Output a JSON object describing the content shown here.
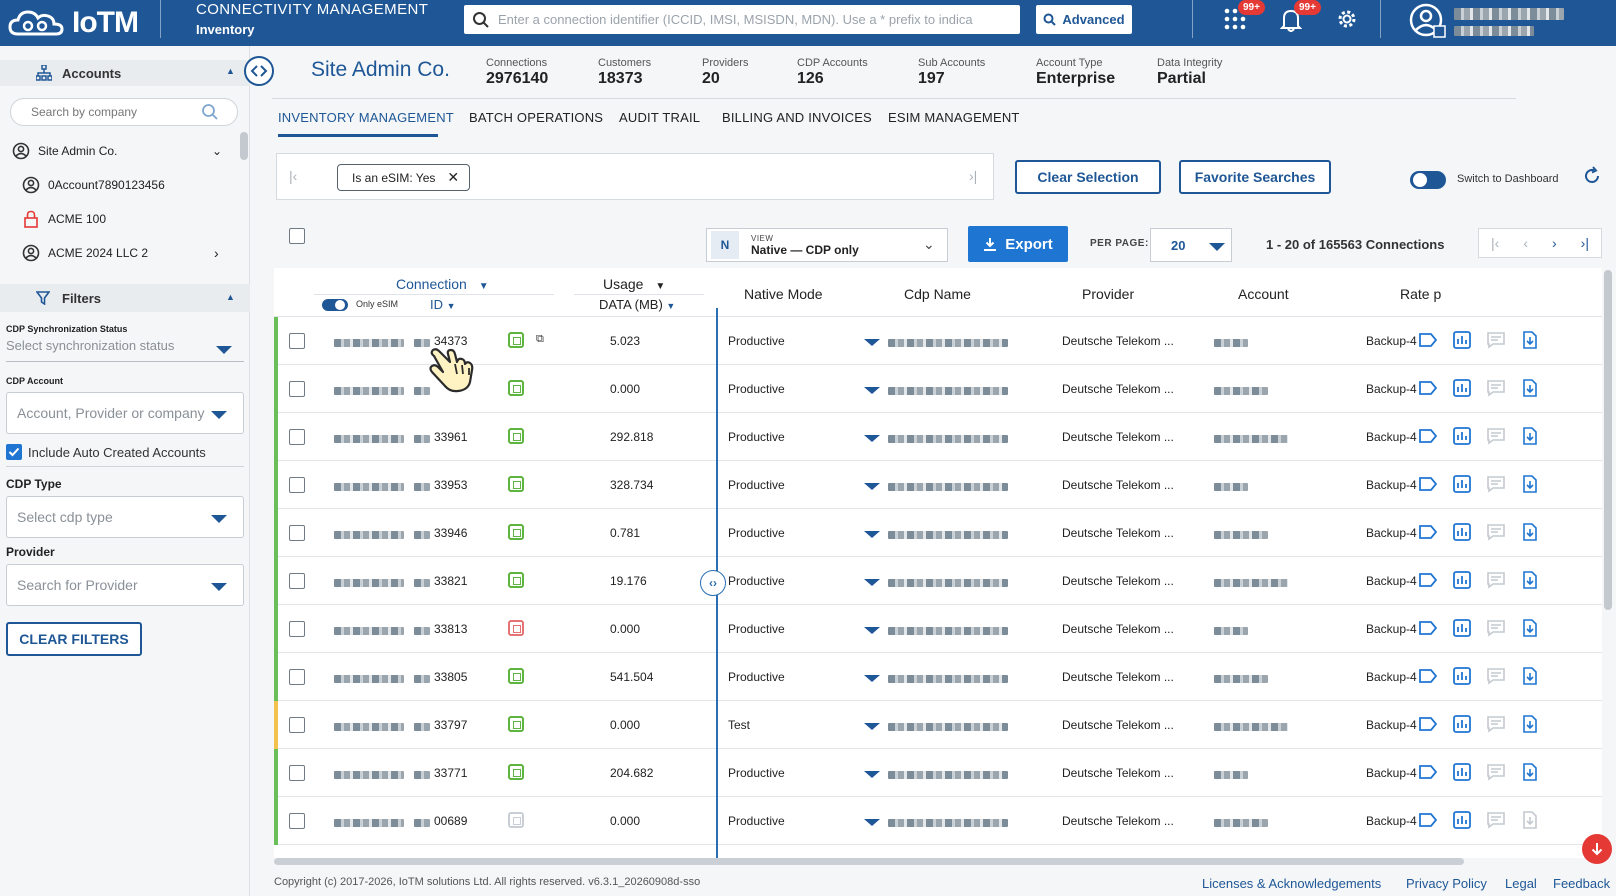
{
  "topbar": {
    "logo_text": "IoTM",
    "product_title": "CONNECTIVITY MANAGEMENT",
    "product_subtitle": "Inventory",
    "search_placeholder": "Enter a connection identifier (ICCID, IMSI, MSISDN, MDN). Use a * prefix to indica",
    "advanced_label": "Advanced",
    "apps_badge": "99+",
    "notifications_badge": "99+"
  },
  "sidebar": {
    "accounts_title": "Accounts",
    "company_search_placeholder": "Search by company",
    "accounts": [
      {
        "label": "Site Admin Co.",
        "icon": "user-circle-icon"
      },
      {
        "label": "0Account7890123456",
        "icon": "user-circle-icon"
      },
      {
        "label": "ACME 100",
        "icon": "lock-icon"
      },
      {
        "label": "ACME 2024 LLC 2",
        "icon": "user-circle-icon"
      }
    ],
    "filters_title": "Filters",
    "cdp_sync_label": "CDP Synchronization Status",
    "cdp_sync_placeholder": "Select synchronization status",
    "cdp_account_label": "CDP Account",
    "cdp_account_placeholder": "Account, Provider or company",
    "include_auto_label": "Include Auto Created Accounts",
    "cdp_type_label": "CDP Type",
    "cdp_type_placeholder": "Select cdp type",
    "provider_label": "Provider",
    "provider_placeholder": "Search for Provider",
    "clear_filters_label": "CLEAR FILTERS"
  },
  "header": {
    "title": "Site Admin Co.",
    "stats": [
      {
        "label": "Connections",
        "value": "2976140"
      },
      {
        "label": "Customers",
        "value": "18373"
      },
      {
        "label": "Providers",
        "value": "20"
      },
      {
        "label": "CDP Accounts",
        "value": "126"
      },
      {
        "label": "Sub Accounts",
        "value": "197"
      },
      {
        "label": "Account Type",
        "value": "Enterprise"
      },
      {
        "label": "Data Integrity",
        "value": "Partial"
      }
    ]
  },
  "tabs": [
    {
      "label": "INVENTORY MANAGEMENT",
      "active": true
    },
    {
      "label": "BATCH OPERATIONS",
      "active": false
    },
    {
      "label": "AUDIT TRAIL",
      "active": false
    },
    {
      "label": "BILLING AND INVOICES",
      "active": false
    },
    {
      "label": "ESIM MANAGEMENT",
      "active": false
    }
  ],
  "toolbar": {
    "chip_label": "Is an eSIM: Yes",
    "clear_selection_label": "Clear Selection",
    "favorite_searches_label": "Favorite Searches",
    "switch_dashboard_label": "Switch to Dashboard",
    "view_badge": "N",
    "view_caption": "VIEW",
    "view_value": "Native — CDP only",
    "export_label": "Export",
    "per_page_label": "PER PAGE:",
    "per_page_value": "20",
    "range_text": "1 - 20 of 165563 Connections"
  },
  "table": {
    "headers": {
      "connection": "Connection",
      "only_esim": "Only eSIM",
      "id": "ID",
      "usage": "Usage",
      "data_mb": "DATA (MB)",
      "native_mode": "Native Mode",
      "cdp_name": "Cdp Name",
      "provider": "Provider",
      "account": "Account",
      "rate_plan": "Rate p"
    },
    "rows": [
      {
        "id_suffix": "34373",
        "chip": "green",
        "usage": "5.023",
        "mode": "Productive",
        "provider": "Deutsche Telekom ...",
        "rate": "Backup-4",
        "stripe": "#6bbf59"
      },
      {
        "id_suffix": "",
        "chip": "green",
        "usage": "0.000",
        "mode": "Productive",
        "provider": "Deutsche Telekom ...",
        "rate": "Backup-4",
        "stripe": "#6bbf59"
      },
      {
        "id_suffix": "33961",
        "chip": "green",
        "usage": "292.818",
        "mode": "Productive",
        "provider": "Deutsche Telekom ...",
        "rate": "Backup-4",
        "stripe": "#6bbf59"
      },
      {
        "id_suffix": "33953",
        "chip": "green",
        "usage": "328.734",
        "mode": "Productive",
        "provider": "Deutsche Telekom ...",
        "rate": "Backup-4",
        "stripe": "#6bbf59"
      },
      {
        "id_suffix": "33946",
        "chip": "green",
        "usage": "0.781",
        "mode": "Productive",
        "provider": "Deutsche Telekom ...",
        "rate": "Backup-4",
        "stripe": "#6bbf59"
      },
      {
        "id_suffix": "33821",
        "chip": "green",
        "usage": "19.176",
        "mode": "Productive",
        "provider": "Deutsche Telekom ...",
        "rate": "Backup-4",
        "stripe": "#6bbf59"
      },
      {
        "id_suffix": "33813",
        "chip": "red",
        "usage": "0.000",
        "mode": "Productive",
        "provider": "Deutsche Telekom ...",
        "rate": "Backup-4",
        "stripe": "#6bbf59"
      },
      {
        "id_suffix": "33805",
        "chip": "green",
        "usage": "541.504",
        "mode": "Productive",
        "provider": "Deutsche Telekom ...",
        "rate": "Backup-4",
        "stripe": "#6bbf59"
      },
      {
        "id_suffix": "33797",
        "chip": "green",
        "usage": "0.000",
        "mode": "Test",
        "provider": "Deutsche Telekom ...",
        "rate": "Backup-4",
        "stripe": "#f2c14e"
      },
      {
        "id_suffix": "33771",
        "chip": "green",
        "usage": "204.682",
        "mode": "Productive",
        "provider": "Deutsche Telekom ...",
        "rate": "Backup-4",
        "stripe": "#6bbf59"
      },
      {
        "id_suffix": "00689",
        "chip": "gray",
        "usage": "0.000",
        "mode": "Productive",
        "provider": "Deutsche Telekom ...",
        "rate": "Backup-4",
        "stripe": "#6bbf59"
      }
    ]
  },
  "footer": {
    "copyright": "Copyright (c) 2017-2026, IoTM solutions Ltd. All rights reserved. v6.3.1_20260908d-sso",
    "links": [
      "Licenses & Acknowledgements",
      "Privacy Policy",
      "Legal",
      "Feedback"
    ]
  },
  "colors": {
    "brand": "#1f5796",
    "accent": "#1f76d2",
    "status_green": "#6bbf59",
    "status_yellow": "#f2c14e",
    "alert_red": "#e53935"
  }
}
